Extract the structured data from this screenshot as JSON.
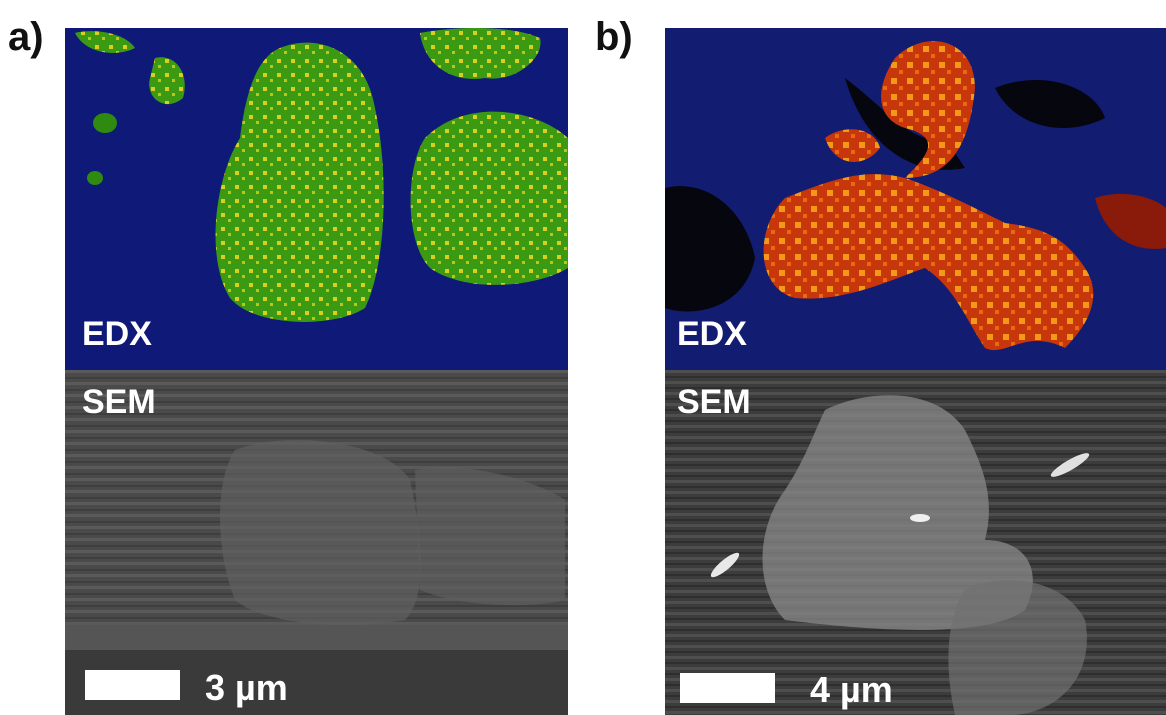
{
  "panels": [
    {
      "label": "a)",
      "edx_label": "EDX",
      "sem_label": "SEM",
      "scale_bar": "3 µm"
    },
    {
      "label": "b)",
      "edx_label": "EDX",
      "sem_label": "SEM",
      "scale_bar": "4 µm"
    }
  ]
}
